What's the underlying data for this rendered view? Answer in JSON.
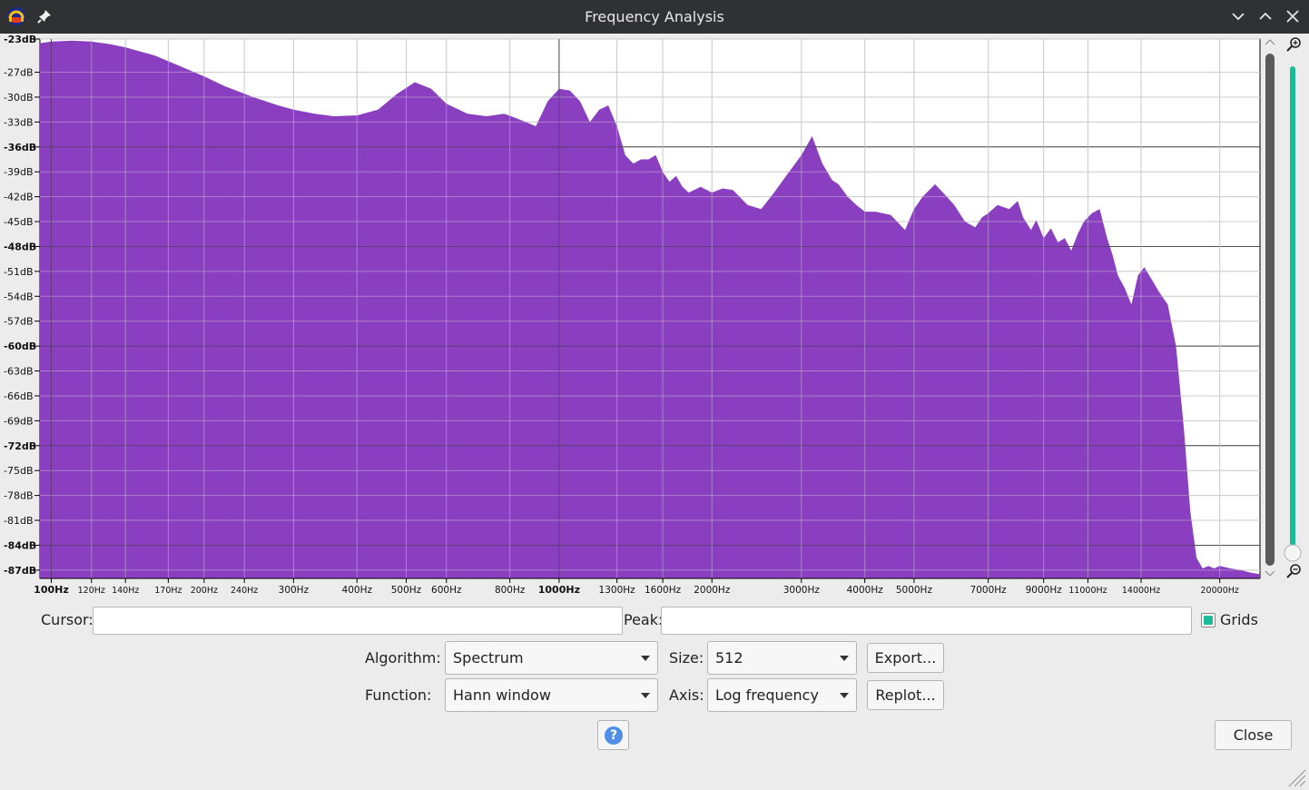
{
  "window": {
    "title": "Frequency Analysis",
    "icons": [
      "audacity-app-icon",
      "pin-icon",
      "minimize-icon",
      "maximize-icon",
      "close-icon"
    ]
  },
  "chart_data": {
    "type": "area",
    "xscale": "log",
    "xlim": [
      95,
      24000
    ],
    "ylim": [
      -88,
      -23
    ],
    "grid": true,
    "fill_color": "#8a3ec0",
    "x_tick_labels": [
      "100Hz",
      "120Hz",
      "140Hz",
      "170Hz",
      "200Hz",
      "240Hz",
      "300Hz",
      "400Hz",
      "500Hz",
      "600Hz",
      "800Hz",
      "1000Hz",
      "1300Hz",
      "1600Hz",
      "2000Hz",
      "3000Hz",
      "4000Hz",
      "5000Hz",
      "7000Hz",
      "9000Hz",
      "11000Hz",
      "14000Hz",
      "20000Hz"
    ],
    "x_tick_values": [
      100,
      120,
      140,
      170,
      200,
      240,
      300,
      400,
      500,
      600,
      800,
      1000,
      1300,
      1600,
      2000,
      3000,
      4000,
      5000,
      7000,
      9000,
      11000,
      14000,
      20000
    ],
    "y_tick_labels": [
      "-23dB",
      "-27dB",
      "-30dB",
      "-33dB",
      "-36dB",
      "-39dB",
      "-42dB",
      "-45dB",
      "-48dB",
      "-51dB",
      "-54dB",
      "-57dB",
      "-60dB",
      "-63dB",
      "-66dB",
      "-69dB",
      "-72dB",
      "-75dB",
      "-78dB",
      "-81dB",
      "-84dB",
      "-87dB"
    ],
    "y_tick_values": [
      -23,
      -27,
      -30,
      -33,
      -36,
      -39,
      -42,
      -45,
      -48,
      -51,
      -54,
      -57,
      -60,
      -63,
      -66,
      -69,
      -72,
      -75,
      -78,
      -81,
      -84,
      -87
    ],
    "x": [
      95,
      100,
      110,
      120,
      130,
      140,
      160,
      180,
      200,
      220,
      250,
      280,
      300,
      330,
      360,
      400,
      440,
      480,
      520,
      560,
      600,
      660,
      720,
      780,
      820,
      860,
      900,
      950,
      1000,
      1050,
      1100,
      1150,
      1200,
      1250,
      1300,
      1350,
      1400,
      1450,
      1500,
      1550,
      1600,
      1650,
      1700,
      1750,
      1800,
      1900,
      2000,
      2100,
      2200,
      2350,
      2500,
      2650,
      2800,
      3000,
      3150,
      3300,
      3450,
      3550,
      3700,
      3850,
      4000,
      4200,
      4500,
      4800,
      5000,
      5200,
      5500,
      5800,
      6000,
      6300,
      6600,
      6800,
      7000,
      7300,
      7700,
      8000,
      8200,
      8500,
      8700,
      9000,
      9300,
      9600,
      9900,
      10200,
      10500,
      10800,
      11200,
      11600,
      12000,
      12300,
      12600,
      13000,
      13400,
      13800,
      14200,
      14700,
      15200,
      15800,
      16400,
      17000,
      17500,
      18000,
      18500,
      19000,
      19500,
      20000,
      21000,
      22000,
      23000,
      24000
    ],
    "y": [
      -23.5,
      -23.3,
      -23.2,
      -23.3,
      -23.6,
      -24.0,
      -25.0,
      -26.3,
      -27.5,
      -28.7,
      -30.0,
      -31.0,
      -31.5,
      -32.0,
      -32.3,
      -32.2,
      -31.5,
      -29.6,
      -28.2,
      -29.0,
      -30.8,
      -32.0,
      -32.3,
      -32.0,
      -32.5,
      -33.0,
      -33.5,
      -30.5,
      -29.0,
      -29.2,
      -30.5,
      -33.0,
      -31.5,
      -31.0,
      -33.5,
      -37.0,
      -38.0,
      -37.5,
      -37.5,
      -37.0,
      -39.0,
      -40.2,
      -39.5,
      -40.8,
      -41.5,
      -40.8,
      -41.5,
      -41.0,
      -41.2,
      -43.0,
      -43.5,
      -41.5,
      -39.5,
      -37.0,
      -34.7,
      -38.0,
      -40.0,
      -40.5,
      -42.0,
      -43.0,
      -43.8,
      -43.8,
      -44.2,
      -46.0,
      -43.5,
      -42.0,
      -40.5,
      -42.0,
      -43.0,
      -45.0,
      -45.7,
      -44.5,
      -44.0,
      -43.0,
      -43.5,
      -42.5,
      -44.5,
      -46.0,
      -44.8,
      -47.0,
      -45.8,
      -47.5,
      -47.0,
      -48.5,
      -46.5,
      -45.0,
      -44.0,
      -43.5,
      -47.0,
      -49.0,
      -51.5,
      -53.0,
      -55.0,
      -51.5,
      -50.5,
      -52.0,
      -53.5,
      -55.0,
      -60.0,
      -70.0,
      -80.0,
      -85.5,
      -86.8,
      -86.5,
      -86.8,
      -86.5,
      -86.8,
      -87.0,
      -87.3,
      -87.5
    ]
  },
  "controls": {
    "cursor_label": "Cursor:",
    "cursor_value": "",
    "peak_label": "Peak:",
    "peak_value": "",
    "grids_label": "Grids",
    "grids_checked": true,
    "algorithm_label": "Algorithm:",
    "algorithm_value": "Spectrum",
    "function_label": "Function:",
    "function_value": "Hann window",
    "size_label": "Size:",
    "size_value": "512",
    "axis_label": "Axis:",
    "axis_value": "Log frequency",
    "export_label": "Export...",
    "replot_label": "Replot...",
    "help_symbol": "?",
    "close_label": "Close"
  },
  "colors": {
    "titlebar": "#2f3133",
    "spectrum_fill": "#8a3ec0",
    "zoom_slider": "#1abc9c",
    "help_icon": "#4f8fe8"
  }
}
